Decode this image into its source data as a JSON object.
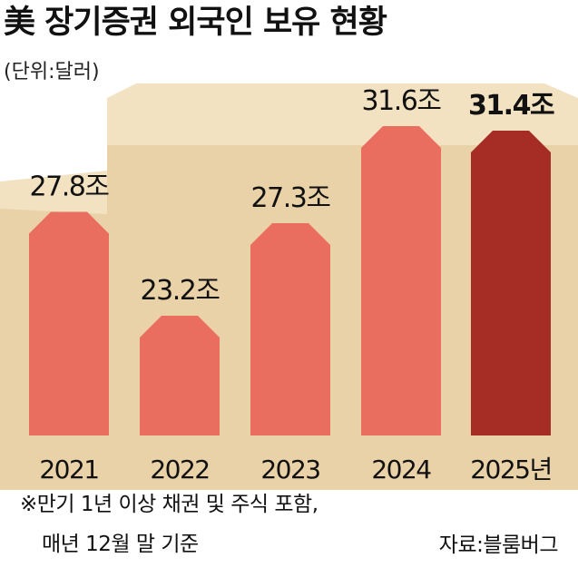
{
  "title": "美 장기증권 외국인 보유 현황",
  "unit_label": "(단위:달러)",
  "note_line1": "※만기 1년 이상 채권 및 주식 포함,",
  "note_line2": "매년 12월 말 기준",
  "source": "자료:블룸버그",
  "colors": {
    "background": "#ffffff",
    "bg_shape": "#ead2a8",
    "bg_shape_light": "#f2e2c2",
    "bar": "#ea6e60",
    "bar_highlight": "#a52d25"
  },
  "chart_data": {
    "type": "bar",
    "categories": [
      "2021",
      "2022",
      "2023",
      "2024",
      "2025년"
    ],
    "values": [
      27.8,
      23.2,
      27.3,
      31.6,
      31.4
    ],
    "value_labels": [
      "27.8조",
      "23.2조",
      "27.3조",
      "31.6조",
      "31.4조"
    ],
    "highlight_index": 4,
    "unit": "조 달러",
    "title": "美 장기증권 외국인 보유 현황",
    "xlabel": "",
    "ylabel": ""
  }
}
